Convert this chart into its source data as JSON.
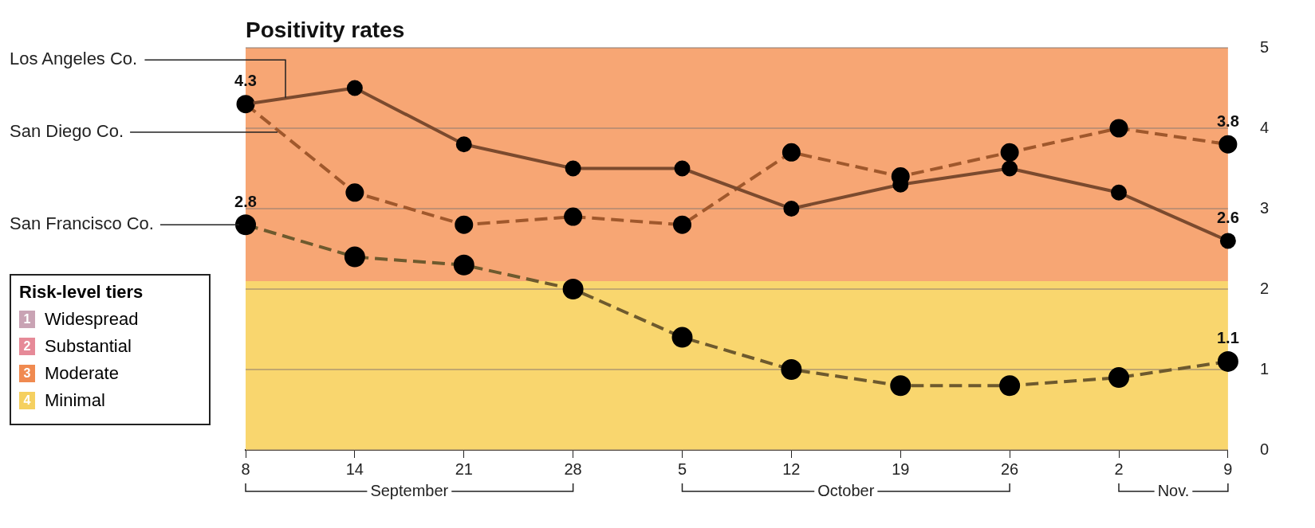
{
  "chart_data": {
    "type": "line",
    "title": "Positivity rates",
    "legend_title": "Risk-level tiers",
    "categories": [
      "8",
      "14",
      "21",
      "28",
      "5",
      "12",
      "19",
      "26",
      "2",
      "9"
    ],
    "series": [
      {
        "name": "Los Angeles Co.",
        "color": "#7b4a2e",
        "line_style": "solid",
        "values": [
          4.3,
          4.5,
          3.8,
          3.5,
          3.5,
          3.0,
          3.3,
          3.5,
          3.2,
          2.6
        ],
        "value_labels": [
          "4.3",
          null,
          null,
          null,
          null,
          null,
          null,
          null,
          null,
          "2.6"
        ]
      },
      {
        "name": "San Diego Co.",
        "color": "#a0582c",
        "line_style": "dashed",
        "values": [
          4.3,
          3.2,
          2.8,
          2.9,
          2.8,
          3.7,
          3.4,
          3.7,
          4.0,
          3.8
        ],
        "value_labels": [
          null,
          null,
          null,
          null,
          null,
          null,
          null,
          null,
          null,
          "3.8"
        ]
      },
      {
        "name": "San Francisco Co.",
        "color": "#6e5a2e",
        "line_style": "dashed",
        "values": [
          2.8,
          2.4,
          2.3,
          2.0,
          1.4,
          1.0,
          0.8,
          0.8,
          0.9,
          1.1
        ],
        "value_labels": [
          "2.8",
          null,
          null,
          null,
          null,
          null,
          null,
          null,
          null,
          "1.1"
        ]
      }
    ],
    "ylim": [
      0,
      5
    ],
    "yticks": [
      0,
      1,
      2,
      3,
      4,
      5
    ],
    "grid": "y",
    "marker": "circle",
    "bands": [
      {
        "axis": "y",
        "from": 0,
        "to": 2.1,
        "color": "#f9d66e"
      },
      {
        "axis": "y",
        "from": 2.1,
        "to": 5,
        "color": "#f7a674"
      }
    ],
    "annotations": [
      "1 Widespread",
      "2 Substantial",
      "3 Moderate",
      "4 Minimal",
      "September",
      "October",
      "Nov."
    ]
  }
}
